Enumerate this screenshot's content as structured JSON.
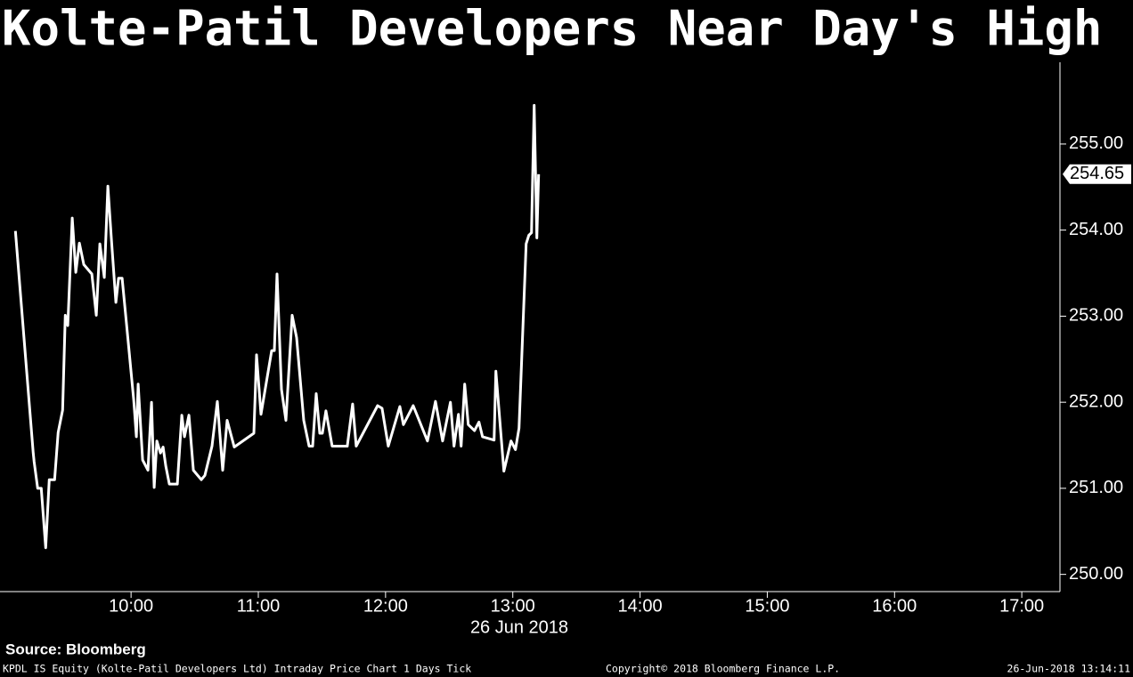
{
  "chart_data": {
    "type": "line",
    "title": "Kolte-Patil Developers Near Day's High",
    "x_label": "26 Jun 2018",
    "source": "Source: Bloomberg",
    "footer_left": "KPDL IS Equity (Kolte-Patil Developers Ltd) Intraday Price Chart 1 Days  Tick",
    "footer_center": "Copyright© 2018 Bloomberg Finance L.P.",
    "footer_right": "26-Jun-2018 13:14:11",
    "last_price": 254.65,
    "xlim": [
      8.97,
      17.3
    ],
    "ylim": [
      249.8,
      255.95
    ],
    "xticks": [
      {
        "value": 10,
        "label": "10:00"
      },
      {
        "value": 11,
        "label": "11:00"
      },
      {
        "value": 12,
        "label": "12:00"
      },
      {
        "value": 13,
        "label": "13:00"
      },
      {
        "value": 14,
        "label": "14:00"
      },
      {
        "value": 15,
        "label": "15:00"
      },
      {
        "value": 16,
        "label": "16:00"
      },
      {
        "value": 17,
        "label": "17:00"
      }
    ],
    "yticks": [
      {
        "value": 250,
        "label": "250.00"
      },
      {
        "value": 251,
        "label": "251.00"
      },
      {
        "value": 252,
        "label": "252.00"
      },
      {
        "value": 253,
        "label": "253.00"
      },
      {
        "value": 254,
        "label": "254.00"
      },
      {
        "value": 255,
        "label": "255.00"
      }
    ],
    "series": [
      {
        "name": "KPDL IS Equity",
        "color": "#ffffff",
        "x": [
          9.091,
          9.231,
          9.238,
          9.266,
          9.294,
          9.329,
          9.357,
          9.399,
          9.427,
          9.462,
          9.483,
          9.503,
          9.538,
          9.566,
          9.594,
          9.629,
          9.692,
          9.727,
          9.755,
          9.79,
          9.818,
          9.846,
          9.881,
          9.902,
          9.93,
          9.958,
          10.021,
          10.042,
          10.056,
          10.091,
          10.133,
          10.161,
          10.182,
          10.203,
          10.231,
          10.252,
          10.273,
          10.301,
          10.364,
          10.399,
          10.42,
          10.455,
          10.49,
          10.552,
          10.58,
          10.636,
          10.678,
          10.72,
          10.755,
          10.811,
          10.965,
          10.986,
          11.021,
          11.105,
          11.126,
          11.147,
          11.182,
          11.217,
          11.266,
          11.301,
          11.357,
          11.399,
          11.427,
          11.455,
          11.483,
          11.503,
          11.531,
          11.58,
          11.699,
          11.741,
          11.769,
          11.937,
          11.972,
          12.021,
          12.112,
          12.14,
          12.217,
          12.329,
          12.392,
          12.448,
          12.51,
          12.538,
          12.573,
          12.594,
          12.622,
          12.65,
          12.699,
          12.734,
          12.762,
          12.853,
          12.867,
          12.93,
          12.986,
          13.021,
          13.049,
          13.105,
          13.126,
          13.147,
          13.168,
          13.189,
          13.203
        ],
        "values": [
          253.99,
          251.41,
          251.31,
          251.0,
          251.0,
          250.31,
          251.1,
          251.1,
          251.65,
          251.91,
          253.01,
          252.89,
          254.14,
          253.51,
          253.85,
          253.6,
          253.49,
          253.01,
          253.84,
          253.45,
          254.51,
          253.89,
          253.16,
          253.44,
          253.44,
          253.01,
          252.03,
          251.6,
          252.21,
          251.33,
          251.21,
          252.0,
          251.01,
          251.55,
          251.41,
          251.48,
          251.26,
          251.05,
          251.05,
          251.85,
          251.6,
          251.85,
          251.21,
          251.1,
          251.15,
          251.49,
          252.01,
          251.21,
          251.79,
          251.48,
          251.64,
          252.55,
          251.86,
          252.6,
          252.6,
          253.49,
          252.15,
          251.79,
          253.01,
          252.75,
          251.79,
          251.49,
          251.49,
          252.1,
          251.64,
          251.64,
          251.9,
          251.49,
          251.49,
          251.98,
          251.49,
          251.96,
          251.93,
          251.49,
          251.95,
          251.74,
          251.96,
          251.55,
          252.01,
          251.55,
          252.0,
          251.49,
          251.86,
          251.49,
          252.21,
          251.74,
          251.67,
          251.77,
          251.6,
          251.56,
          252.36,
          251.2,
          251.55,
          251.45,
          251.7,
          253.84,
          253.94,
          253.97,
          255.45,
          253.91,
          254.65
        ]
      }
    ]
  }
}
